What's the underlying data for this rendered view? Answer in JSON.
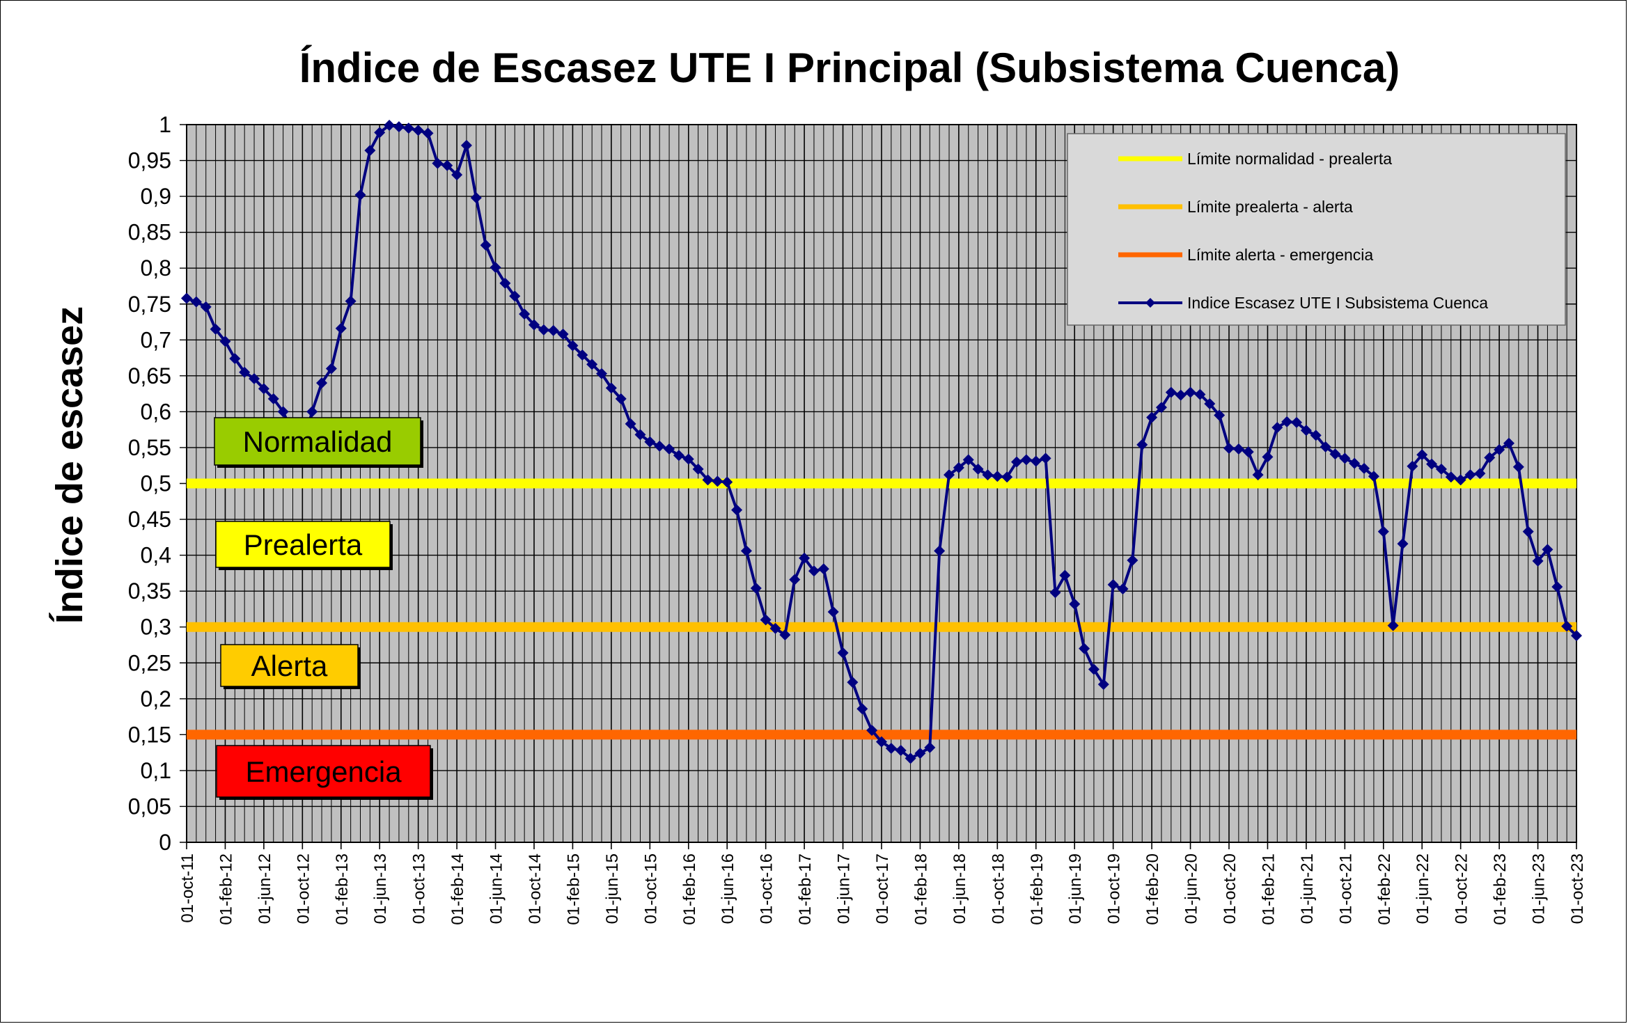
{
  "chart_data": {
    "type": "line",
    "title": "Índice de Escasez UTE I Principal (Subsistema Cuenca)",
    "ylabel": "Índice de escasez",
    "xlabel": "",
    "ylim": [
      0,
      1
    ],
    "ytick_step": 0.05,
    "grid": true,
    "plot_background": "#C0C0C0",
    "legend_position": "top-right",
    "x_tick_labels": [
      "01-oct-11",
      "01-feb-12",
      "01-jun-12",
      "01-oct-12",
      "01-feb-13",
      "01-jun-13",
      "01-oct-13",
      "01-feb-14",
      "01-jun-14",
      "01-oct-14",
      "01-feb-15",
      "01-jun-15",
      "01-oct-15",
      "01-feb-16",
      "01-jun-16",
      "01-oct-16",
      "01-feb-17",
      "01-jun-17",
      "01-oct-17",
      "01-feb-18",
      "01-jun-18",
      "01-oct-18",
      "01-feb-19",
      "01-jun-19",
      "01-oct-19",
      "01-feb-20",
      "01-jun-20",
      "01-oct-20",
      "01-feb-21",
      "01-jun-21",
      "01-oct-21",
      "01-feb-22",
      "01-jun-22",
      "01-oct-22",
      "01-feb-23",
      "01-jun-23",
      "01-oct-23"
    ],
    "x_start": "01-oct-11",
    "x_step_months": 1,
    "thresholds": [
      {
        "name": "Límite normalidad - prealerta",
        "value": 0.5,
        "color": "#FFFF00"
      },
      {
        "name": "Límite prealerta - alerta",
        "value": 0.3,
        "color": "#FFC000"
      },
      {
        "name": "Límite alerta - emergencia",
        "value": 0.15,
        "color": "#FF6600"
      }
    ],
    "series": [
      {
        "name": "Indice Escasez UTE I Subsistema Cuenca",
        "color": "#000080",
        "marker": "diamond",
        "values": [
          0.758,
          0.753,
          0.746,
          0.715,
          0.698,
          0.674,
          0.655,
          0.646,
          0.632,
          0.618,
          0.6,
          0.57,
          0.55,
          0.6,
          0.64,
          0.66,
          0.716,
          0.754,
          0.902,
          0.964,
          0.989,
          0.999,
          0.997,
          0.995,
          0.992,
          0.988,
          0.946,
          0.943,
          0.93,
          0.971,
          0.898,
          0.832,
          0.801,
          0.779,
          0.761,
          0.736,
          0.721,
          0.714,
          0.713,
          0.708,
          0.692,
          0.679,
          0.666,
          0.653,
          0.633,
          0.618,
          0.583,
          0.568,
          0.558,
          0.552,
          0.548,
          0.539,
          0.534,
          0.52,
          0.505,
          0.503,
          0.502,
          0.463,
          0.406,
          0.354,
          0.31,
          0.298,
          0.289,
          0.366,
          0.396,
          0.378,
          0.381,
          0.321,
          0.264,
          0.223,
          0.186,
          0.156,
          0.14,
          0.131,
          0.128,
          0.117,
          0.124,
          0.132,
          0.406,
          0.512,
          0.522,
          0.533,
          0.52,
          0.512,
          0.51,
          0.509,
          0.53,
          0.533,
          0.531,
          0.535,
          0.348,
          0.372,
          0.332,
          0.27,
          0.241,
          0.22,
          0.359,
          0.353,
          0.393,
          0.554,
          0.592,
          0.606,
          0.627,
          0.623,
          0.627,
          0.624,
          0.611,
          0.595,
          0.549,
          0.548,
          0.544,
          0.512,
          0.537,
          0.578,
          0.586,
          0.585,
          0.574,
          0.567,
          0.551,
          0.541,
          0.535,
          0.528,
          0.521,
          0.51,
          0.433,
          0.302,
          0.416,
          0.524,
          0.54,
          0.527,
          0.52,
          0.509,
          0.505,
          0.512,
          0.514,
          0.536,
          0.547,
          0.556,
          0.523,
          0.433,
          0.392,
          0.408,
          0.356,
          0.301,
          0.288
        ]
      }
    ],
    "zone_labels": [
      {
        "text": "Normalidad",
        "color": "#99CC00"
      },
      {
        "text": "Prealerta",
        "color": "#FFFF00"
      },
      {
        "text": "Alerta",
        "color": "#FFCC00"
      },
      {
        "text": "Emergencia",
        "color": "#FF0000"
      }
    ]
  }
}
